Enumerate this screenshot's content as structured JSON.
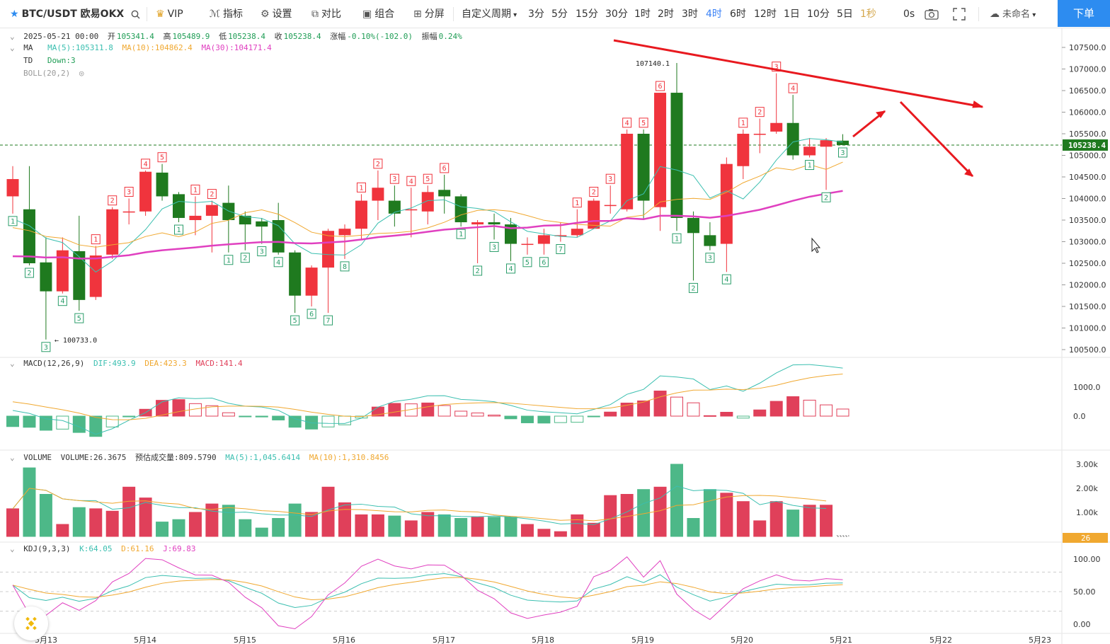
{
  "toolbar": {
    "symbol": "BTC/USDT 欧易OKX",
    "vip": "VIP",
    "indicators": "指标",
    "settings": "设置",
    "compare": "对比",
    "combine": "组合",
    "split": "分屏",
    "custom_period": "自定义周期",
    "periods": [
      "3分",
      "5分",
      "15分",
      "30分",
      "1时",
      "2时",
      "3时",
      "4时",
      "6时",
      "12时",
      "1日",
      "10分",
      "5日",
      "1秒"
    ],
    "active_period": "4时",
    "countdown": "0s",
    "unnamed": "未命名",
    "order": "下单"
  },
  "info": {
    "date": "2025-05-21 00:00",
    "open_label": "开",
    "open": "105341.4",
    "high_label": "高",
    "high": "105489.9",
    "low_label": "低",
    "low": "105238.4",
    "close_label": "收",
    "close": "105238.4",
    "change_label": "涨幅",
    "change": "-0.10%(-102.0)",
    "amp_label": "振幅",
    "amp": "0.24%",
    "ma_name": "MA",
    "ma5": "MA(5):105311.8",
    "ma10": "MA(10):104862.4",
    "ma30": "MA(30):104171.4",
    "td_name": "TD",
    "td_val": "Down:3",
    "boll": "BOLL(20,2)",
    "macd_name": "MACD(12,26,9)",
    "dif": "DIF:493.9",
    "dea": "DEA:423.3",
    "macd": "MACD:141.4",
    "vol_name": "VOLUME",
    "vol": "VOLUME:26.3675",
    "vol_est": "预估成交量:809.5790",
    "vol_ma5": "MA(5):1,045.6414",
    "vol_ma10": "MA(10):1,310.8456",
    "kdj_name": "KDJ(9,3,3)",
    "k": "K:64.05",
    "d": "D:61.16",
    "j": "J:69.83"
  },
  "colors": {
    "up": "#f0343d",
    "down": "#1f7a1f",
    "ma5": "#3bbfb0",
    "ma10": "#f0a830",
    "ma30": "#e040c0",
    "accent": "#2d8cf0",
    "arrow": "#e8191f"
  },
  "chart_data": {
    "type": "candlestick",
    "price_axis": [
      "107500.0",
      "107000.0",
      "106500.0",
      "106000.0",
      "105500.0",
      "105000.0",
      "104500.0",
      "104000.0",
      "103500.0",
      "103000.0",
      "102500.0",
      "102000.0",
      "101500.0",
      "101000.0",
      "100500.0"
    ],
    "ylim": [
      100400,
      107900
    ],
    "last_price": "105238.4",
    "high_label": "107140.1",
    "low_label": "100733.0",
    "x_labels": [
      "5月13",
      "5月14",
      "5月15",
      "5月16",
      "5月17",
      "5月18",
      "5月19",
      "5月20",
      "5月21",
      "5月22",
      "5月23"
    ],
    "candles": [
      [
        104050,
        104450,
        103650,
        104750
      ],
      [
        103750,
        102500,
        102450,
        104750
      ],
      [
        102520,
        101850,
        100733,
        103100
      ],
      [
        101850,
        102800,
        101800,
        103100
      ],
      [
        102780,
        101650,
        101400,
        103600
      ],
      [
        101720,
        102680,
        101650,
        102900
      ],
      [
        102700,
        103750,
        102600,
        103800
      ],
      [
        103700,
        103700,
        103400,
        104000
      ],
      [
        103700,
        104620,
        103600,
        104650
      ],
      [
        104600,
        104050,
        103950,
        104800
      ],
      [
        104100,
        103550,
        103450,
        104150
      ],
      [
        103500,
        103600,
        103150,
        104050
      ],
      [
        103600,
        103850,
        102750,
        103950
      ],
      [
        103900,
        103500,
        102750,
        104300
      ],
      [
        103600,
        103400,
        102800,
        103700
      ],
      [
        103470,
        103350,
        102950,
        103550
      ],
      [
        103500,
        102750,
        102700,
        103900
      ],
      [
        102750,
        101750,
        101350,
        102800
      ],
      [
        101750,
        102400,
        101500,
        102450
      ],
      [
        102400,
        103250,
        101350,
        103300
      ],
      [
        103150,
        103300,
        102600,
        103400
      ],
      [
        103300,
        103950,
        103050,
        104100
      ],
      [
        103950,
        104250,
        103500,
        104650
      ],
      [
        103950,
        103650,
        103350,
        104300
      ],
      [
        103750,
        103750,
        103100,
        104250
      ],
      [
        103700,
        104150,
        103400,
        104300
      ],
      [
        104200,
        104050,
        103650,
        104550
      ],
      [
        104050,
        103450,
        103350,
        104100
      ],
      [
        103400,
        103450,
        102500,
        103500
      ],
      [
        103450,
        103400,
        103050,
        103650
      ],
      [
        103400,
        102950,
        102550,
        103550
      ],
      [
        102950,
        102950,
        102700,
        103100
      ],
      [
        102950,
        103150,
        102700,
        103300
      ],
      [
        103150,
        103150,
        103000,
        103450
      ],
      [
        103150,
        103300,
        103100,
        103750
      ],
      [
        103300,
        103950,
        103300,
        104000
      ],
      [
        103850,
        103850,
        103650,
        104300
      ],
      [
        103750,
        105500,
        103700,
        105600
      ],
      [
        105500,
        103950,
        103500,
        105600
      ],
      [
        103800,
        106450,
        103250,
        106450
      ],
      [
        106450,
        103550,
        103250,
        107140.1
      ],
      [
        103550,
        103200,
        102100,
        103700
      ],
      [
        103150,
        102900,
        102800,
        103450
      ],
      [
        102950,
        104800,
        102300,
        104950
      ],
      [
        104750,
        105500,
        104450,
        105600
      ],
      [
        105500,
        105500,
        105050,
        105850
      ],
      [
        105550,
        105750,
        105500,
        106900
      ],
      [
        105750,
        105000,
        104900,
        106400
      ],
      [
        105000,
        105200,
        104950,
        105400
      ],
      [
        105200,
        105350,
        104200,
        105400
      ],
      [
        105340,
        105238,
        105238,
        105490
      ]
    ],
    "td_marks": [
      [
        "1",
        "down"
      ],
      [
        "2",
        "down"
      ],
      [
        "3",
        "down"
      ],
      [
        "4",
        "down"
      ],
      [
        "5",
        "down"
      ],
      [
        "1",
        "up"
      ],
      [
        "2",
        "up"
      ],
      [
        "3",
        "up"
      ],
      [
        "4",
        "up"
      ],
      [
        "5",
        "up"
      ],
      [
        "1",
        "down"
      ],
      [
        "1",
        "up"
      ],
      [
        "2",
        "up"
      ],
      [
        "1",
        "down"
      ],
      [
        "2",
        "down"
      ],
      [
        "3",
        "down"
      ],
      [
        "4",
        "down"
      ],
      [
        "5",
        "down"
      ],
      [
        "6",
        "down"
      ],
      [
        "7",
        "down"
      ],
      [
        "8",
        "down"
      ],
      [
        "1",
        "up"
      ],
      [
        "2",
        "up"
      ],
      [
        "3",
        "up"
      ],
      [
        "4",
        "up"
      ],
      [
        "5",
        "up"
      ],
      [
        "6",
        "up"
      ],
      [
        "1",
        "down"
      ],
      [
        "2",
        "down"
      ],
      [
        "3",
        "down"
      ],
      [
        "4",
        "down"
      ],
      [
        "5",
        "down"
      ],
      [
        "6",
        "down"
      ],
      [
        "7",
        "down"
      ],
      [
        "1",
        "up"
      ],
      [
        "2",
        "up"
      ],
      [
        "3",
        "up"
      ],
      [
        "4",
        "up"
      ],
      [
        "5",
        "up"
      ],
      [
        "6",
        "up"
      ],
      [
        "1",
        "down"
      ],
      [
        "2",
        "down"
      ],
      [
        "3",
        "down"
      ],
      [
        "4",
        "down"
      ],
      [
        "1",
        "up"
      ],
      [
        "2",
        "up"
      ],
      [
        "3",
        "up"
      ],
      [
        "4",
        "up"
      ],
      [
        "1",
        "down"
      ],
      [
        "2",
        "down"
      ],
      [
        "3",
        "down"
      ]
    ],
    "macd_axis": [
      "1000.0",
      "0.0"
    ],
    "volume_axis": [
      "3.00k",
      "2.00k",
      "1.00k"
    ],
    "volume_last": "26",
    "volumes": [
      1150,
      2850,
      1750,
      500,
      1200,
      1150,
      1050,
      2050,
      1600,
      600,
      700,
      1000,
      1350,
      1300,
      700,
      350,
      750,
      1350,
      1000,
      2050,
      1400,
      900,
      900,
      850,
      650,
      1000,
      900,
      750,
      800,
      800,
      800,
      500,
      300,
      200,
      900,
      550,
      1700,
      1750,
      1950,
      2050,
      3000,
      750,
      1950,
      1800,
      1450,
      650,
      1450,
      1100,
      1300,
      1300,
      30
    ],
    "kdj_axis": [
      "100.00",
      "50.00",
      "0.00"
    ]
  }
}
